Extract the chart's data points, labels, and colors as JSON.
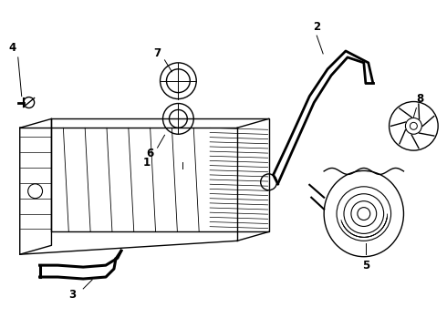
{
  "background_color": "#ffffff",
  "line_color": "#000000",
  "figsize": [
    4.9,
    3.6
  ],
  "dpi": 100
}
